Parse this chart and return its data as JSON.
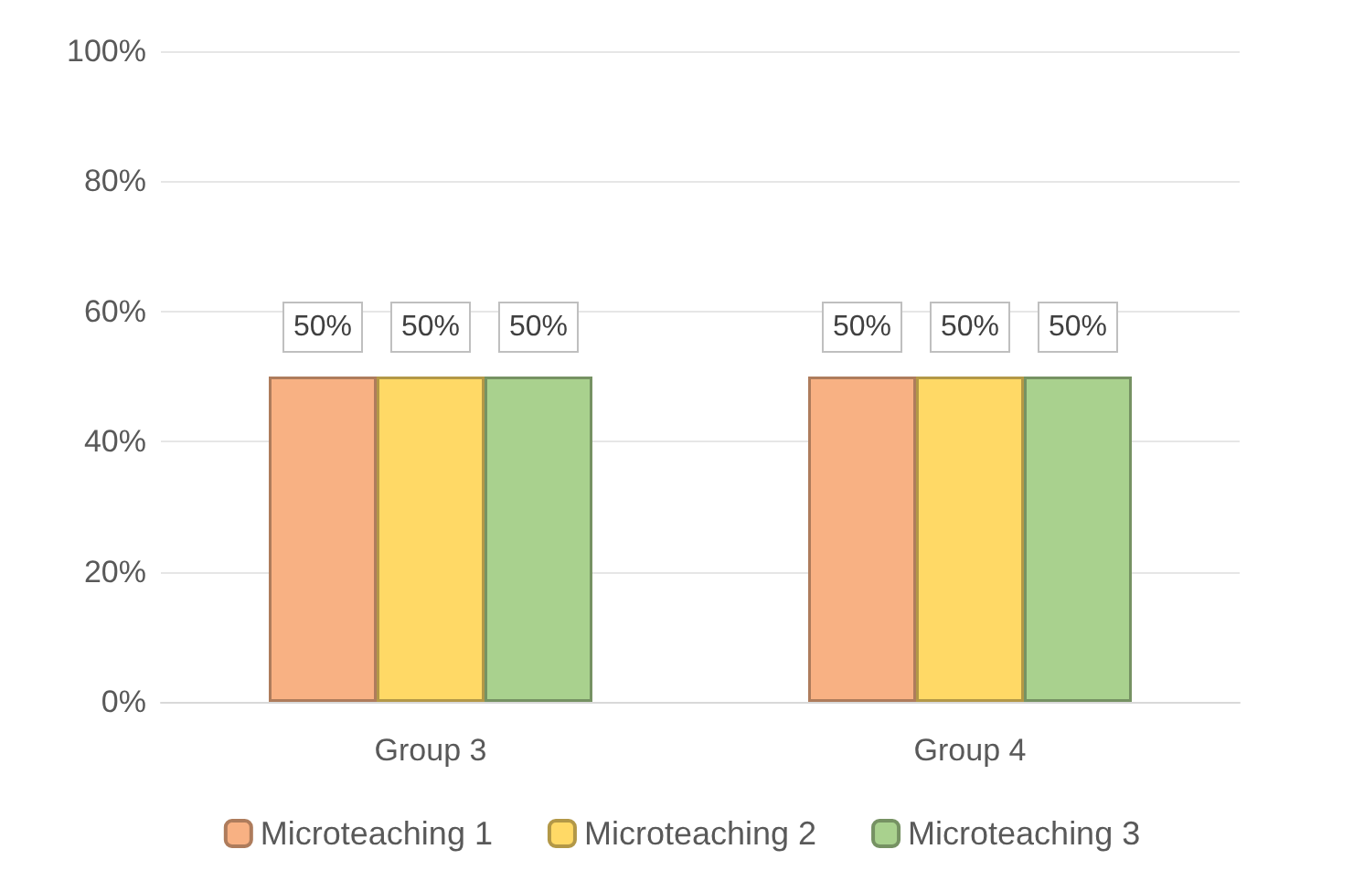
{
  "chart_data": {
    "type": "bar",
    "categories": [
      "Group 3",
      "Group 4"
    ],
    "series": [
      {
        "name": "Microteaching 1",
        "color": "#f8b183",
        "values": [
          50,
          50
        ]
      },
      {
        "name": "Microteaching 2",
        "color": "#ffd966",
        "values": [
          50,
          50
        ]
      },
      {
        "name": "Microteaching 3",
        "color": "#a9d18e",
        "values": [
          50,
          50
        ]
      }
    ],
    "ylim": [
      0,
      100
    ],
    "yticks": [
      {
        "value": 0,
        "label": "0%"
      },
      {
        "value": 20,
        "label": "20%"
      },
      {
        "value": 40,
        "label": "40%"
      },
      {
        "value": 60,
        "label": "60%"
      },
      {
        "value": 80,
        "label": "80%"
      },
      {
        "value": 100,
        "label": "100%"
      }
    ],
    "value_labels": [
      [
        "50%",
        "50%"
      ],
      [
        "50%",
        "50%"
      ],
      [
        "50%",
        "50%"
      ]
    ],
    "grid": "y",
    "legend": "bottom"
  }
}
